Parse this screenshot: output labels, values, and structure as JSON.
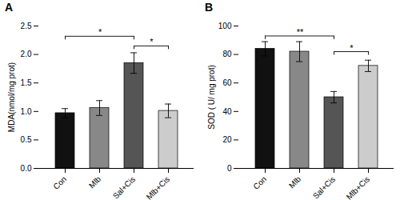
{
  "chart_data": [
    {
      "type": "bar",
      "title": "A",
      "categories": [
        "Con",
        "Mlb",
        "Sal+Cis",
        "Mlb+Cis"
      ],
      "values": [
        0.97,
        1.06,
        1.85,
        1.01
      ],
      "errors": [
        0.08,
        0.13,
        0.18,
        0.12
      ],
      "colors": [
        "#111111",
        "#888888",
        "#555555",
        "#cccccc"
      ],
      "ylabel": "MDA(nmol/mg prot)",
      "ylim": [
        0,
        2.5
      ],
      "yticks": [
        {
          "value": 0.0,
          "label": "0.0"
        },
        0.5,
        {
          "value": 1.0,
          "label": "1.0"
        },
        1.5,
        {
          "value": 2.0,
          "label": "2.0"
        },
        2.5
      ],
      "grid": false,
      "annotations": [
        {
          "x1": "Con",
          "x2": "Sal+Cis",
          "y": 2.32,
          "label": "*"
        },
        {
          "x1": "Sal+Cis",
          "x2": "Mlb+Cis",
          "y": 2.15,
          "label": "*"
        }
      ]
    },
    {
      "type": "bar",
      "title": "B",
      "categories": [
        "Con",
        "Mlb",
        "Sal+Cis",
        "Mlb+Cis"
      ],
      "values": [
        84,
        82,
        50,
        72
      ],
      "errors": [
        5,
        7,
        4,
        4
      ],
      "colors": [
        "#111111",
        "#888888",
        "#555555",
        "#cccccc"
      ],
      "ylabel": "SOD ( U/ mg prot)",
      "ylim": [
        0,
        100
      ],
      "yticks": [
        0,
        20,
        40,
        60,
        80,
        100
      ],
      "grid": false,
      "annotations": [
        {
          "x1": "Con",
          "x2": "Sal+Cis",
          "y": 93,
          "label": "**"
        },
        {
          "x1": "Sal+Cis",
          "x2": "Mlb+Cis",
          "y": 82,
          "label": "*"
        }
      ]
    }
  ]
}
